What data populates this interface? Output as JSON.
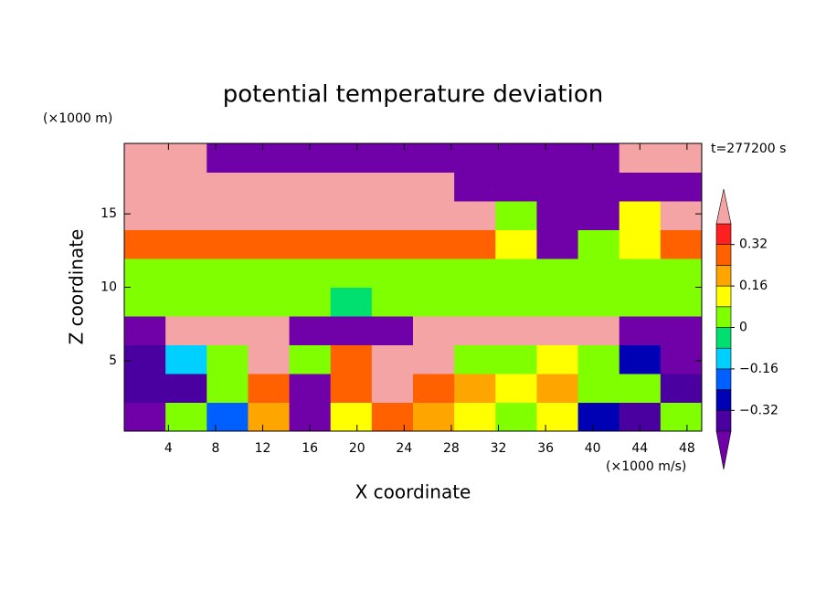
{
  "chart_data": {
    "type": "contour",
    "title": "potential temperature deviation",
    "y_unit": "(×1000 m)",
    "x_unit": "(×1000 m/s)",
    "time_label": "t=277200 s",
    "xlabel": "X coordinate",
    "ylabel": "Z coordinate",
    "xlim": [
      0.25,
      49.25
    ],
    "ylim": [
      0.2,
      19.8
    ],
    "xticks": [
      4,
      8,
      12,
      16,
      20,
      24,
      28,
      32,
      36,
      40,
      44,
      48
    ],
    "yticks": [
      5,
      10,
      15
    ],
    "x": [
      2,
      5.5,
      9,
      12.5,
      16,
      19.5,
      23,
      26.5,
      30,
      33.5,
      37,
      40.5,
      44,
      47.5
    ],
    "y": [
      1.18,
      3.14,
      5.1,
      7.06,
      9.02,
      10.98,
      12.94,
      14.9,
      16.86,
      18.82
    ],
    "z": [
      [
        -0.45,
        0.05,
        -0.2,
        0.2,
        -0.45,
        0.1,
        0.3,
        0.2,
        0.1,
        0.05,
        0.1,
        -0.25,
        -0.35,
        0.05
      ],
      [
        -0.35,
        -0.4,
        0.05,
        0.3,
        -0.45,
        0.3,
        0.5,
        0.3,
        0.2,
        0.15,
        0.2,
        0.05,
        0.0,
        -0.4
      ],
      [
        -0.4,
        -0.1,
        0.05,
        0.5,
        0.0,
        0.3,
        0.45,
        0.45,
        0.05,
        0.05,
        0.1,
        0.05,
        -0.3,
        -0.45
      ],
      [
        -0.45,
        0.5,
        0.5,
        0.5,
        -0.5,
        -0.5,
        -0.5,
        0.5,
        0.5,
        0.5,
        0.5,
        0.5,
        -0.5,
        -0.5
      ],
      [
        0.05,
        0.05,
        0.05,
        0.05,
        0.02,
        -0.03,
        0.02,
        0.05,
        0.05,
        0.05,
        0.05,
        0.05,
        0.05,
        0.05
      ],
      [
        0.05,
        0.05,
        0.05,
        0.05,
        0.05,
        0.02,
        0.05,
        0.05,
        0.05,
        0.05,
        0.05,
        0.05,
        0.05,
        0.05
      ],
      [
        0.3,
        0.3,
        0.3,
        0.3,
        0.3,
        0.3,
        0.3,
        0.3,
        0.3,
        0.1,
        -0.5,
        0.05,
        0.1,
        0.3
      ],
      [
        0.5,
        0.5,
        0.5,
        0.5,
        0.5,
        0.5,
        0.5,
        0.5,
        0.5,
        0.05,
        -0.5,
        -0.5,
        0.1,
        0.5
      ],
      [
        0.5,
        0.5,
        0.5,
        0.5,
        0.5,
        0.5,
        0.5,
        0.5,
        -0.5,
        -0.5,
        -0.5,
        -0.5,
        -0.5,
        -0.5
      ],
      [
        0.5,
        0.5,
        -0.5,
        -0.5,
        -0.5,
        -0.5,
        -0.5,
        -0.5,
        -0.5,
        -0.5,
        -0.5,
        -0.5,
        0.5,
        0.5
      ]
    ],
    "levels": [
      -0.4,
      -0.32,
      -0.24,
      -0.16,
      -0.08,
      0,
      0.08,
      0.16,
      0.24,
      0.32,
      0.4
    ],
    "colors": [
      "#7000a8",
      "#4a00a0",
      "#0000b4",
      "#0060ff",
      "#00d0ff",
      "#00e070",
      "#80ff00",
      "#ffff00",
      "#ffa500",
      "#ff6000",
      "#ff2020",
      "#f4a4a4"
    ],
    "colorbar_ticks": [
      {
        "value": -0.32,
        "label": "−0.32"
      },
      {
        "value": -0.16,
        "label": "−0.16"
      },
      0,
      0.16,
      0.32
    ]
  }
}
